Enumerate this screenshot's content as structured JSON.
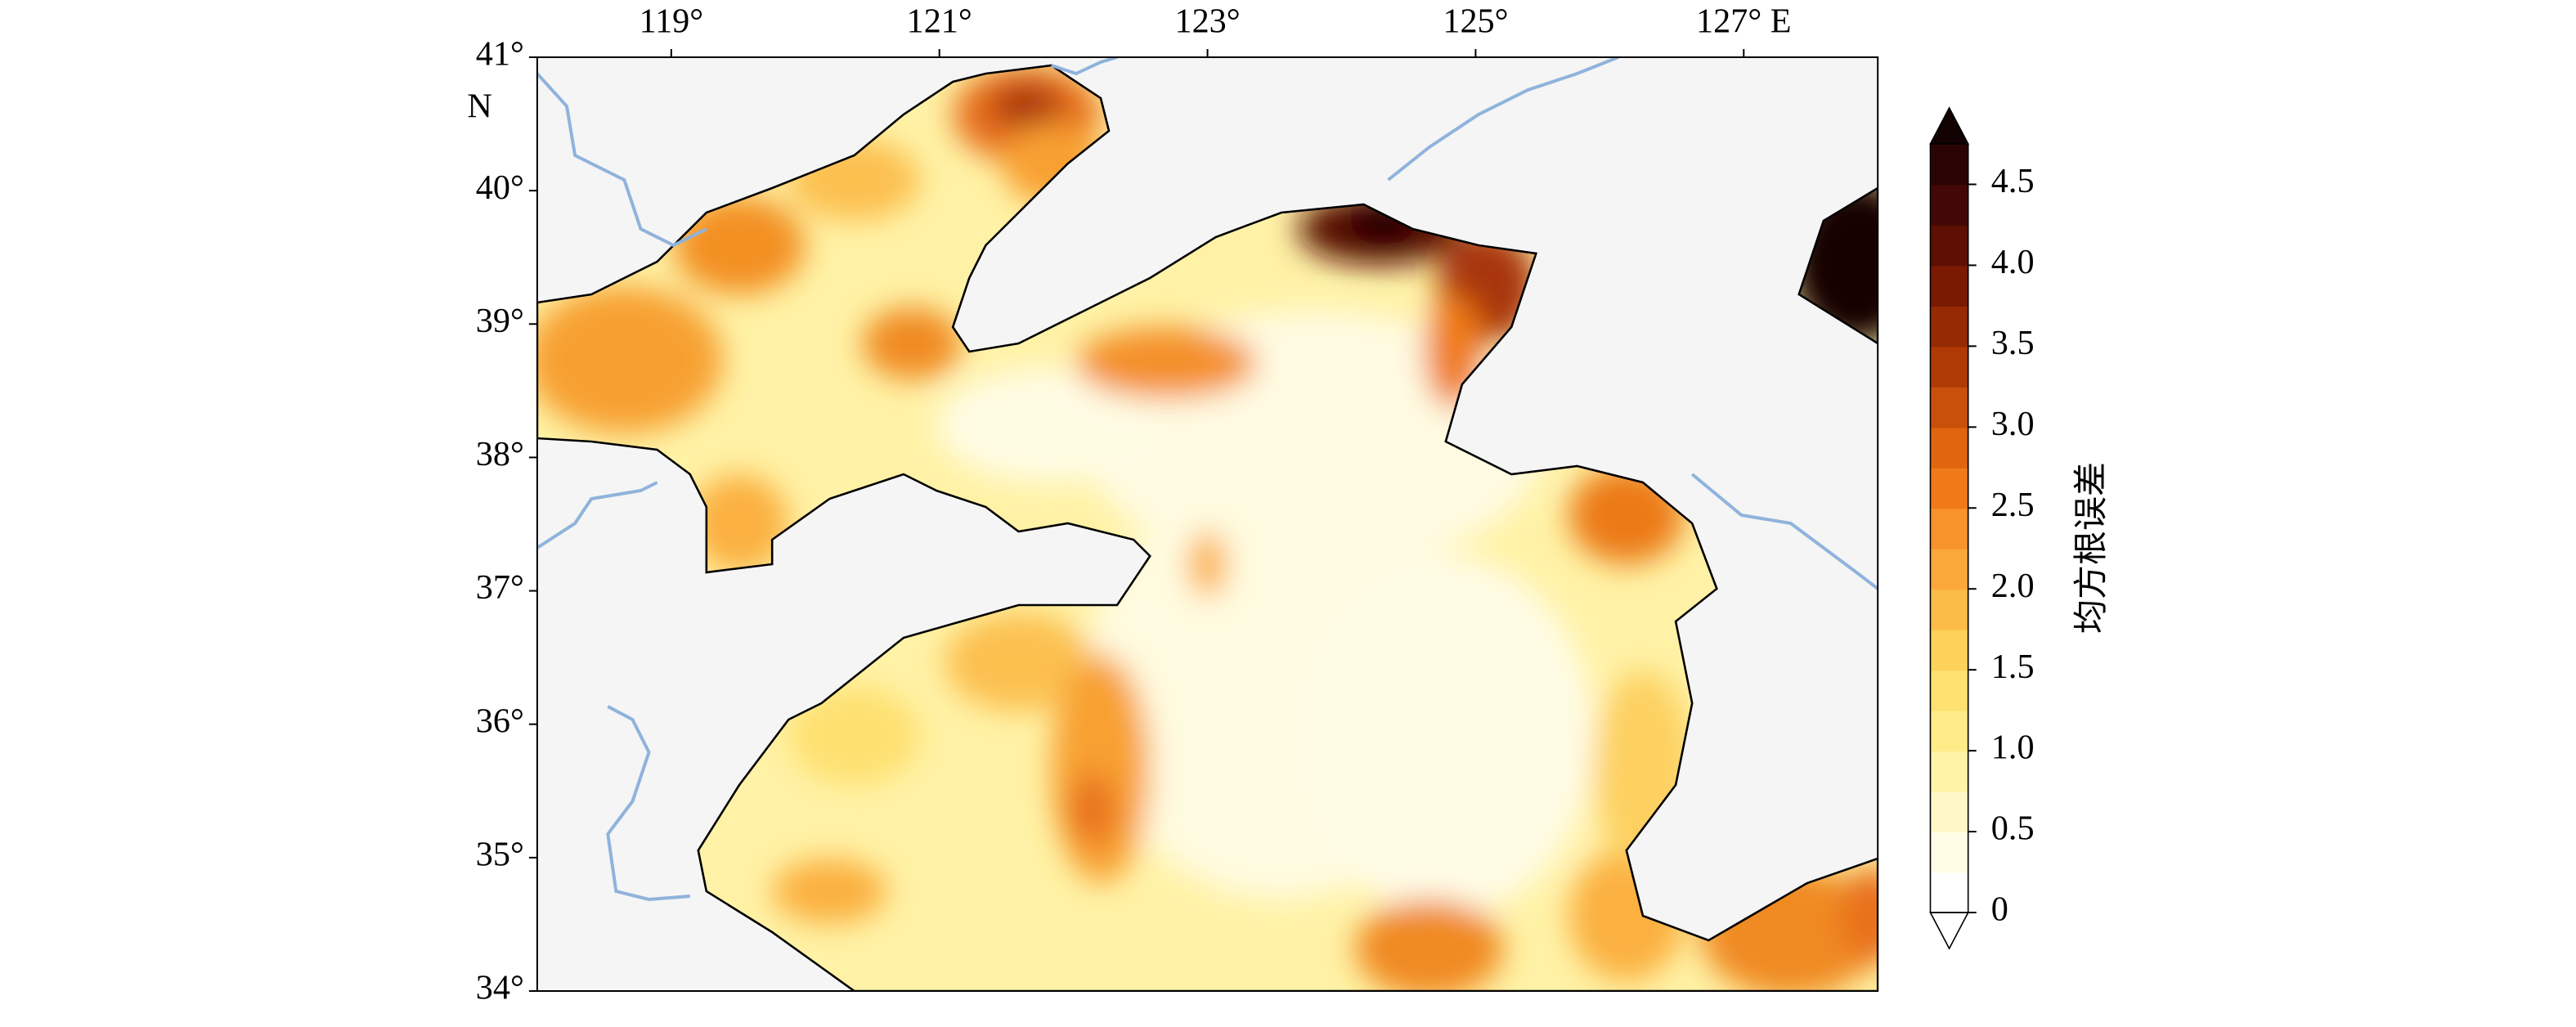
{
  "map": {
    "type": "filled-contour-map",
    "xlim": [
      118,
      128
    ],
    "ylim": [
      34,
      41
    ],
    "xticks": [
      {
        "value": 119,
        "label": "119°"
      },
      {
        "value": 121,
        "label": "121°"
      },
      {
        "value": 123,
        "label": "123°"
      },
      {
        "value": 125,
        "label": "125°"
      },
      {
        "value": 127,
        "label": "127° E"
      }
    ],
    "yticks": [
      {
        "value": 41,
        "label": "41°"
      },
      {
        "value": 40,
        "label": "40°"
      },
      {
        "value": 39,
        "label": "39°"
      },
      {
        "value": 38,
        "label": "38°"
      },
      {
        "value": 37,
        "label": "37°"
      },
      {
        "value": 36,
        "label": "36°"
      },
      {
        "value": 35,
        "label": "35°"
      },
      {
        "value": 34,
        "label": "34°"
      }
    ],
    "lat_hemisphere": "N",
    "colorbar": {
      "label": "均方根误差",
      "lim": [
        0,
        4.75
      ],
      "ticks": [
        0,
        0.5,
        {
          "value": 1,
          "label": "1.0"
        },
        1.5,
        {
          "value": 2,
          "label": "2.0"
        },
        2.5,
        {
          "value": 3,
          "label": "3.0"
        },
        3.5,
        {
          "value": 4,
          "label": "4.0"
        },
        4.5
      ],
      "levels": [
        0,
        0.25,
        0.5,
        0.75,
        1,
        1.25,
        1.5,
        1.75,
        2,
        2.25,
        2.5,
        2.75,
        3,
        3.25,
        3.5,
        3.75,
        4,
        4.25,
        4.5,
        4.75
      ],
      "colors": [
        "#ffffff",
        "#fffde6",
        "#fff8c6",
        "#fff3a6",
        "#ffec88",
        "#fee170",
        "#fdd15a",
        "#fcbd48",
        "#fba83a",
        "#f8922a",
        "#f07a18",
        "#e0650e",
        "#c8500a",
        "#b03a06",
        "#952a04",
        "#7a1a02",
        "#5e1002",
        "#430805",
        "#2a0404"
      ],
      "extend": "both",
      "under_color": "#ffffff",
      "over_color": "#120202"
    }
  }
}
